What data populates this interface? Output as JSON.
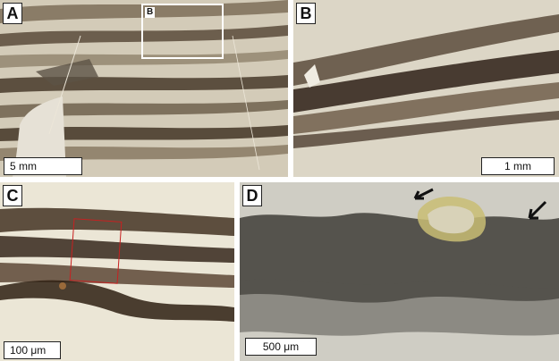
{
  "panels": [
    {
      "label": "A",
      "scale_text": "5 mm",
      "inset_label": "B"
    },
    {
      "label": "B",
      "scale_text": "1 mm"
    },
    {
      "label": "C",
      "scale_text": "100 μm"
    },
    {
      "label": "D",
      "scale_text": "500 μm"
    }
  ],
  "colors": {
    "matrix_light": "#d6cfbd",
    "lamina_dark": "#3a2a1c",
    "panel_d_yellow": "#c9bd74",
    "highlight_red": "#c82020"
  }
}
